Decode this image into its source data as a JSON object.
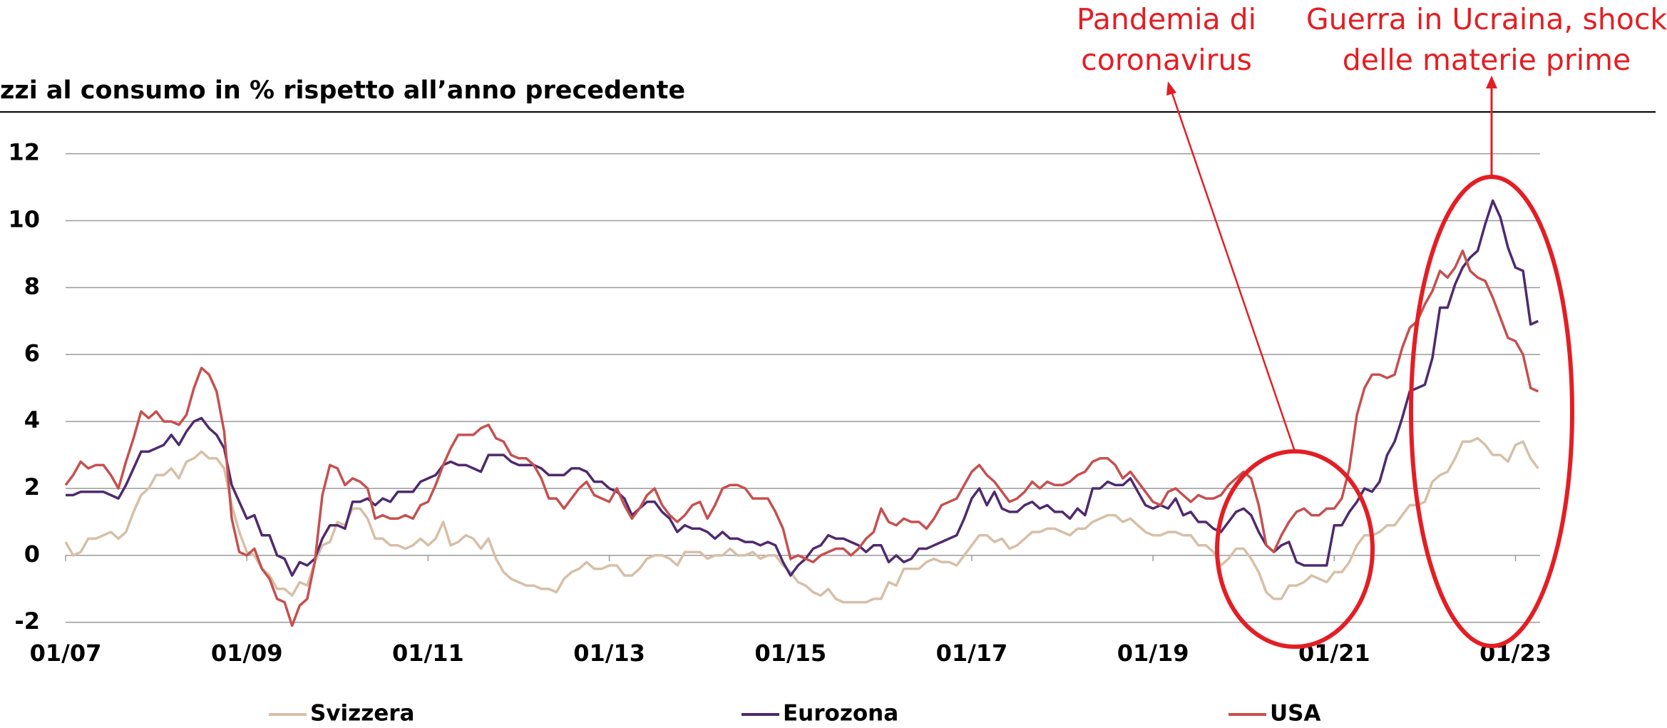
{
  "chart_data": {
    "type": "line",
    "title": "zzi al consumo in % rispetto all’anno precedente",
    "annotations": [
      {
        "text": [
          "Pandemia di",
          "coronavirus"
        ]
      },
      {
        "text": [
          "Guerra in Ucraina, shock",
          "delle materie prime"
        ]
      }
    ],
    "categories": [
      "01/07",
      null,
      null,
      null,
      null,
      null,
      null,
      null,
      null,
      null,
      null,
      null,
      null,
      null,
      null,
      null,
      null,
      null,
      null,
      null,
      null,
      null,
      null,
      null,
      "01/09",
      null,
      null,
      null,
      null,
      null,
      null,
      null,
      null,
      null,
      null,
      null,
      null,
      null,
      null,
      null,
      null,
      null,
      null,
      null,
      null,
      null,
      null,
      null,
      "01/11",
      null,
      null,
      null,
      null,
      null,
      null,
      null,
      null,
      null,
      null,
      null,
      null,
      null,
      null,
      null,
      null,
      null,
      null,
      null,
      null,
      null,
      null,
      null,
      "01/13",
      null,
      null,
      null,
      null,
      null,
      null,
      null,
      null,
      null,
      null,
      null,
      null,
      null,
      null,
      null,
      null,
      null,
      null,
      null,
      null,
      null,
      null,
      null,
      "01/15",
      null,
      null,
      null,
      null,
      null,
      null,
      null,
      null,
      null,
      null,
      null,
      null,
      null,
      null,
      null,
      null,
      null,
      null,
      null,
      null,
      null,
      null,
      null,
      "01/17",
      null,
      null,
      null,
      null,
      null,
      null,
      null,
      null,
      null,
      null,
      null,
      null,
      null,
      null,
      null,
      null,
      null,
      null,
      null,
      null,
      null,
      null,
      null,
      "01/19",
      null,
      null,
      null,
      null,
      null,
      null,
      null,
      null,
      null,
      null,
      null,
      null,
      null,
      null,
      null,
      null,
      null,
      null,
      null,
      null,
      null,
      null,
      null,
      "01/21",
      null,
      null,
      null,
      null,
      null,
      null,
      null,
      null,
      null,
      null,
      null,
      null,
      null,
      null,
      null,
      null,
      null,
      null,
      null,
      null,
      null,
      null,
      null,
      "01/23",
      null,
      null,
      null
    ],
    "series": [
      {
        "name": "Svizzera",
        "color": "#d7bfa6",
        "values": [
          0.4,
          0.0,
          0.1,
          0.5,
          0.5,
          0.6,
          0.7,
          0.5,
          0.7,
          1.3,
          1.8,
          2.0,
          2.4,
          2.4,
          2.6,
          2.3,
          2.8,
          2.9,
          3.1,
          2.9,
          2.9,
          2.6,
          1.5,
          0.7,
          0.1,
          0.0,
          -0.4,
          -0.6,
          -1.0,
          -1.0,
          -1.2,
          -0.8,
          -0.9,
          -0.2,
          0.3,
          0.4,
          1.0,
          0.9,
          1.4,
          1.4,
          1.1,
          0.5,
          0.5,
          0.3,
          0.3,
          0.2,
          0.3,
          0.5,
          0.3,
          0.5,
          1.0,
          0.3,
          0.4,
          0.6,
          0.5,
          0.2,
          0.5,
          -0.1,
          -0.5,
          -0.7,
          -0.8,
          -0.9,
          -0.9,
          -1.0,
          -1.0,
          -1.1,
          -0.7,
          -0.5,
          -0.4,
          -0.2,
          -0.4,
          -0.4,
          -0.3,
          -0.3,
          -0.6,
          -0.6,
          -0.4,
          -0.1,
          0.0,
          0.0,
          -0.1,
          -0.3,
          0.1,
          0.1,
          0.1,
          -0.1,
          0.0,
          0.0,
          0.2,
          0.0,
          0.0,
          0.1,
          -0.1,
          0.0,
          0.0,
          -0.3,
          -0.5,
          -0.8,
          -0.9,
          -1.1,
          -1.2,
          -1.0,
          -1.3,
          -1.4,
          -1.4,
          -1.4,
          -1.4,
          -1.3,
          -1.3,
          -0.8,
          -0.9,
          -0.4,
          -0.4,
          -0.4,
          -0.2,
          -0.1,
          -0.2,
          -0.2,
          -0.3,
          0.0,
          0.3,
          0.6,
          0.6,
          0.4,
          0.5,
          0.2,
          0.3,
          0.5,
          0.7,
          0.7,
          0.8,
          0.8,
          0.7,
          0.6,
          0.8,
          0.8,
          1.0,
          1.1,
          1.2,
          1.2,
          1.0,
          1.1,
          0.9,
          0.7,
          0.6,
          0.6,
          0.7,
          0.7,
          0.6,
          0.6,
          0.3,
          0.3,
          0.1,
          -0.3,
          -0.1,
          0.2,
          0.2,
          -0.1,
          -0.5,
          -1.1,
          -1.3,
          -1.3,
          -0.9,
          -0.9,
          -0.8,
          -0.6,
          -0.7,
          -0.8,
          -0.5,
          -0.5,
          -0.2,
          0.3,
          0.6,
          0.6,
          0.7,
          0.9,
          0.9,
          1.2,
          1.5,
          1.5,
          1.6,
          2.2,
          2.4,
          2.5,
          2.9,
          3.4,
          3.4,
          3.5,
          3.3,
          3.0,
          3.0,
          2.8,
          3.3,
          3.4,
          2.9,
          2.6
        ]
      },
      {
        "name": "Eurozona",
        "color": "#4e2a6e",
        "values": [
          1.8,
          1.8,
          1.9,
          1.9,
          1.9,
          1.9,
          1.8,
          1.7,
          2.1,
          2.6,
          3.1,
          3.1,
          3.2,
          3.3,
          3.6,
          3.3,
          3.7,
          4.0,
          4.1,
          3.8,
          3.6,
          3.2,
          2.1,
          1.6,
          1.1,
          1.2,
          0.6,
          0.6,
          0.0,
          -0.1,
          -0.6,
          -0.2,
          -0.3,
          -0.1,
          0.5,
          0.9,
          0.9,
          0.8,
          1.6,
          1.6,
          1.7,
          1.5,
          1.7,
          1.6,
          1.9,
          1.9,
          1.9,
          2.2,
          2.3,
          2.4,
          2.7,
          2.8,
          2.7,
          2.7,
          2.6,
          2.5,
          3.0,
          3.0,
          3.0,
          2.8,
          2.7,
          2.7,
          2.7,
          2.6,
          2.4,
          2.4,
          2.4,
          2.6,
          2.6,
          2.5,
          2.2,
          2.2,
          2.0,
          1.9,
          1.7,
          1.2,
          1.4,
          1.6,
          1.6,
          1.3,
          1.1,
          0.7,
          0.9,
          0.8,
          0.8,
          0.7,
          0.5,
          0.7,
          0.5,
          0.5,
          0.4,
          0.4,
          0.3,
          0.4,
          0.3,
          -0.2,
          -0.6,
          -0.3,
          -0.1,
          0.2,
          0.3,
          0.6,
          0.5,
          0.5,
          0.4,
          0.3,
          0.1,
          0.3,
          0.3,
          -0.2,
          0.0,
          -0.2,
          -0.1,
          0.2,
          0.2,
          0.3,
          0.4,
          0.5,
          0.6,
          1.1,
          1.7,
          2.0,
          1.5,
          1.9,
          1.4,
          1.3,
          1.3,
          1.5,
          1.6,
          1.4,
          1.5,
          1.3,
          1.3,
          1.1,
          1.4,
          1.2,
          2.0,
          2.0,
          2.2,
          2.1,
          2.1,
          2.3,
          1.9,
          1.5,
          1.4,
          1.5,
          1.4,
          1.7,
          1.2,
          1.3,
          1.0,
          1.0,
          0.8,
          0.7,
          1.0,
          1.3,
          1.4,
          1.2,
          0.7,
          0.3,
          0.1,
          0.3,
          0.4,
          -0.2,
          -0.3,
          -0.3,
          -0.3,
          -0.3,
          0.9,
          0.9,
          1.3,
          1.6,
          2.0,
          1.9,
          2.2,
          3.0,
          3.4,
          4.1,
          4.9,
          5.0,
          5.1,
          5.9,
          7.4,
          7.4,
          8.1,
          8.6,
          8.9,
          9.1,
          9.9,
          10.6,
          10.1,
          9.2,
          8.6,
          8.5,
          6.9,
          7.0
        ]
      },
      {
        "name": "USA",
        "color": "#c5504f",
        "values": [
          2.1,
          2.4,
          2.8,
          2.6,
          2.7,
          2.7,
          2.4,
          2.0,
          2.8,
          3.5,
          4.3,
          4.1,
          4.3,
          4.0,
          4.0,
          3.9,
          4.2,
          5.0,
          5.6,
          5.4,
          4.9,
          3.7,
          1.1,
          0.1,
          0.0,
          0.2,
          -0.4,
          -0.7,
          -1.3,
          -1.4,
          -2.1,
          -1.5,
          -1.3,
          -0.2,
          1.8,
          2.7,
          2.6,
          2.1,
          2.3,
          2.2,
          2.0,
          1.1,
          1.2,
          1.1,
          1.1,
          1.2,
          1.1,
          1.5,
          1.6,
          2.1,
          2.7,
          3.2,
          3.6,
          3.6,
          3.6,
          3.8,
          3.9,
          3.5,
          3.4,
          3.0,
          2.9,
          2.9,
          2.7,
          2.3,
          1.7,
          1.7,
          1.4,
          1.7,
          2.0,
          2.2,
          1.8,
          1.7,
          1.6,
          2.0,
          1.5,
          1.1,
          1.4,
          1.8,
          2.0,
          1.5,
          1.2,
          1.0,
          1.2,
          1.5,
          1.6,
          1.1,
          1.5,
          2.0,
          2.1,
          2.1,
          2.0,
          1.7,
          1.7,
          1.7,
          1.3,
          0.8,
          -0.1,
          0.0,
          -0.1,
          -0.2,
          0.0,
          0.1,
          0.2,
          0.2,
          0.0,
          0.2,
          0.5,
          0.7,
          1.4,
          1.0,
          0.9,
          1.1,
          1.0,
          1.0,
          0.8,
          1.1,
          1.5,
          1.6,
          1.7,
          2.1,
          2.5,
          2.7,
          2.4,
          2.2,
          1.9,
          1.6,
          1.7,
          1.9,
          2.2,
          2.0,
          2.2,
          2.1,
          2.1,
          2.2,
          2.4,
          2.5,
          2.8,
          2.9,
          2.9,
          2.7,
          2.3,
          2.5,
          2.2,
          1.9,
          1.6,
          1.5,
          1.9,
          2.0,
          1.8,
          1.6,
          1.8,
          1.7,
          1.7,
          1.8,
          2.1,
          2.3,
          2.5,
          2.3,
          1.5,
          0.3,
          0.1,
          0.6,
          1.0,
          1.3,
          1.4,
          1.2,
          1.2,
          1.4,
          1.4,
          1.7,
          2.6,
          4.2,
          5.0,
          5.4,
          5.4,
          5.3,
          5.4,
          6.2,
          6.8,
          7.0,
          7.5,
          7.9,
          8.5,
          8.3,
          8.6,
          9.1,
          8.5,
          8.3,
          8.2,
          7.7,
          7.1,
          6.5,
          6.4,
          6.0,
          5.0,
          4.9
        ]
      }
    ],
    "ylim": [
      -2,
      12
    ],
    "yticks": [
      -2,
      0,
      2,
      4,
      6,
      8,
      10,
      12
    ],
    "grid": true
  }
}
